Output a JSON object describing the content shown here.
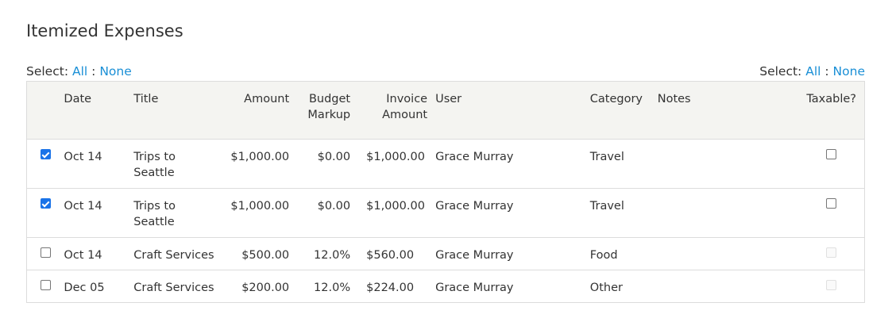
{
  "title": "Itemized Expenses",
  "select_left": {
    "label": "Select:",
    "all": "All",
    "sep": ":",
    "none": "None"
  },
  "select_right": {
    "label": "Select:",
    "all": "All",
    "sep": ":",
    "none": "None"
  },
  "headers": {
    "date": "Date",
    "title": "Title",
    "amount": "Amount",
    "budget_markup_1": "Budget",
    "budget_markup_2": "Markup",
    "invoice_amount_1": "Invoice",
    "invoice_amount_2": "Amount",
    "user": "User",
    "category": "Category",
    "notes": "Notes",
    "taxable": "Taxable?"
  },
  "rows": [
    {
      "selected": true,
      "date": "Oct 14",
      "title_1": "Trips to",
      "title_2": "Seattle",
      "amount": "$1,000.00",
      "markup": "$0.00",
      "invoice": "$1,000.00",
      "user": "Grace Murray",
      "category": "Travel",
      "notes": "",
      "taxable": false,
      "taxable_enabled": true
    },
    {
      "selected": true,
      "date": "Oct 14",
      "title_1": "Trips to",
      "title_2": "Seattle",
      "amount": "$1,000.00",
      "markup": "$0.00",
      "invoice": "$1,000.00",
      "user": "Grace Murray",
      "category": "Travel",
      "notes": "",
      "taxable": false,
      "taxable_enabled": true
    },
    {
      "selected": false,
      "date": "Oct 14",
      "title_1": "Craft Services",
      "title_2": "",
      "amount": "$500.00",
      "markup": "12.0%",
      "invoice": "$560.00",
      "user": "Grace Murray",
      "category": "Food",
      "notes": "",
      "taxable": false,
      "taxable_enabled": false
    },
    {
      "selected": false,
      "date": "Dec 05",
      "title_1": "Craft Services",
      "title_2": "",
      "amount": "$200.00",
      "markup": "12.0%",
      "invoice": "$224.00",
      "user": "Grace Murray",
      "category": "Other",
      "notes": "",
      "taxable": false,
      "taxable_enabled": false
    }
  ],
  "colors": {
    "link": "#1a8fd6",
    "header_bg": "#f4f4f1",
    "border": "#dcdcdc",
    "checkbox_checked": "#1a73e8"
  }
}
